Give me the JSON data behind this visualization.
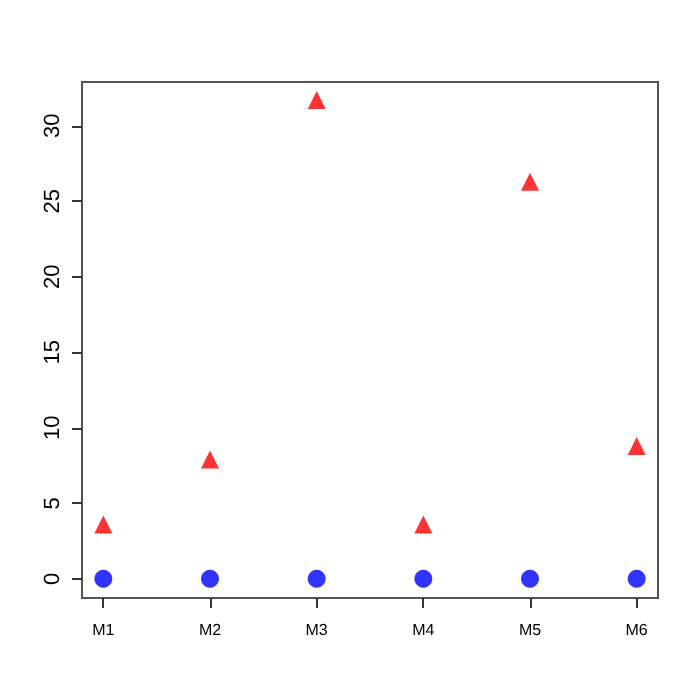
{
  "chart_data": {
    "type": "scatter",
    "categories": [
      "M1",
      "M2",
      "M3",
      "M4",
      "M5",
      "M6"
    ],
    "series": [
      {
        "color": "#ff0000",
        "marker": "triangle",
        "values": [
          3.6,
          7.9,
          31.7,
          3.6,
          26.3,
          8.8
        ]
      },
      {
        "color": "#0000ff",
        "marker": "circle",
        "values": [
          0,
          0,
          0,
          0,
          0,
          0
        ]
      }
    ],
    "ylim": [
      -1.27,
      32.9
    ],
    "yticks": [
      0,
      5,
      10,
      15,
      20,
      25,
      30
    ],
    "grid": false
  }
}
